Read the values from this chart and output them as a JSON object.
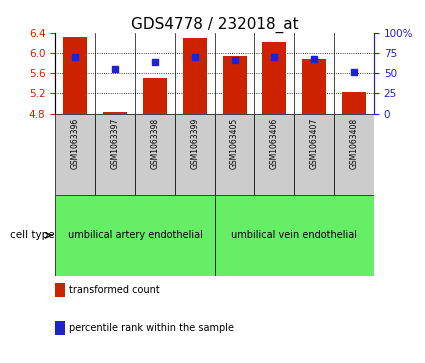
{
  "title": "GDS4778 / 232018_at",
  "samples": [
    "GSM1063396",
    "GSM1063397",
    "GSM1063398",
    "GSM1063399",
    "GSM1063405",
    "GSM1063406",
    "GSM1063407",
    "GSM1063408"
  ],
  "transformed_count": [
    6.31,
    4.83,
    5.51,
    6.3,
    5.93,
    6.22,
    5.88,
    5.22
  ],
  "percentile_rank": [
    70.5,
    55.5,
    63.5,
    70.5,
    66.5,
    70.5,
    67.5,
    51.5
  ],
  "ylim": [
    4.8,
    6.4
  ],
  "yticks": [
    4.8,
    5.2,
    5.6,
    6.0,
    6.4
  ],
  "right_ylim": [
    0,
    100
  ],
  "right_yticks": [
    0,
    25,
    50,
    75,
    100
  ],
  "bar_color": "#cc2200",
  "dot_color": "#2222cc",
  "bar_bottom": 4.8,
  "group1_label": "umbilical artery endothelial",
  "group2_label": "umbilical vein endothelial",
  "green_color": "#66ee66",
  "gray_color": "#cccccc",
  "cell_type_label": "cell type",
  "legend_red_label": "transformed count",
  "legend_blue_label": "percentile rank within the sample",
  "bar_width": 0.6,
  "tick_label_fontsize": 7.5,
  "title_fontsize": 11
}
